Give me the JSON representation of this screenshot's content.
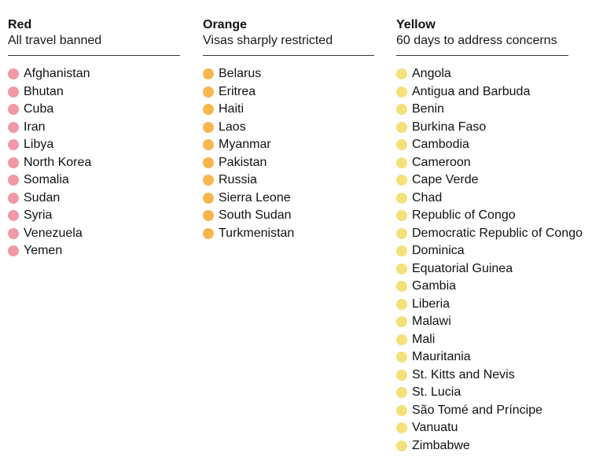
{
  "columns": [
    {
      "key": "red",
      "title": "Red",
      "subtitle": "All travel banned",
      "color": "#ef9aa6",
      "countries": [
        "Afghanistan",
        "Bhutan",
        "Cuba",
        "Iran",
        "Libya",
        "North Korea",
        "Somalia",
        "Sudan",
        "Syria",
        "Venezuela",
        "Yemen"
      ]
    },
    {
      "key": "orange",
      "title": "Orange",
      "subtitle": "Visas sharply restricted",
      "color": "#f7b74e",
      "countries": [
        "Belarus",
        "Eritrea",
        "Haiti",
        "Laos",
        "Myanmar",
        "Pakistan",
        "Russia",
        "Sierra Leone",
        "South Sudan",
        "Turkmenistan"
      ]
    },
    {
      "key": "yellow",
      "title": "Yellow",
      "subtitle": "60 days to address concerns",
      "color": "#f5e17a",
      "countries": [
        "Angola",
        "Antigua and Barbuda",
        "Benin",
        "Burkina Faso",
        "Cambodia",
        "Cameroon",
        "Cape Verde",
        "Chad",
        "Republic of Congo",
        "Democratic Republic of Congo",
        "Dominica",
        "Equatorial Guinea",
        "Gambia",
        "Liberia",
        "Malawi",
        "Mali",
        "Mauritania",
        "St. Kitts and Nevis",
        "St. Lucia",
        "São Tomé and Príncipe",
        "Vanuatu",
        "Zimbabwe"
      ]
    }
  ]
}
